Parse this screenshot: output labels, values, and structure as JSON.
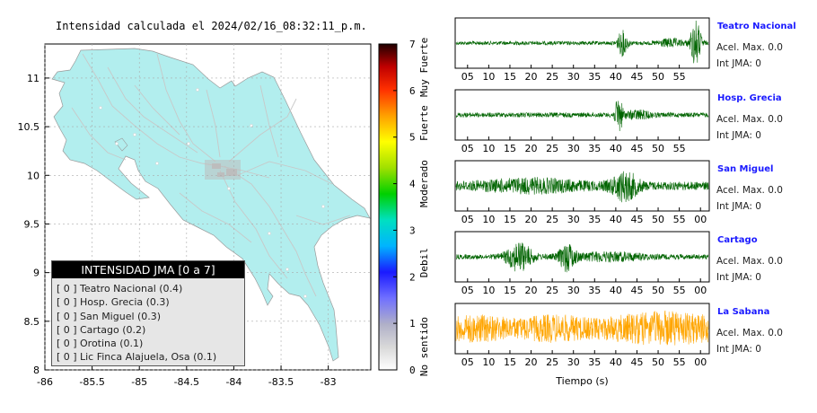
{
  "title": "Intensidad calculada el 2024/02/16_08:32:11_p.m.",
  "map": {
    "xticks": [
      "-86",
      "-85.5",
      "-85",
      "-84.5",
      "-84",
      "-83.5",
      "-83"
    ],
    "yticks": [
      "8",
      "8.5",
      "9",
      "9.5",
      "10",
      "10.5",
      "11"
    ],
    "xlim": [
      -86,
      -82.55
    ],
    "ylim": [
      8,
      11.35
    ],
    "land_color": "#b2eeee",
    "ocean_color": "#ffffff"
  },
  "legend": {
    "title": "INTENSIDAD JMA [0 a 7]",
    "items": [
      {
        "idx": "[ 0 ]",
        "label": "Teatro Nacional (0.4)"
      },
      {
        "idx": "[ 0 ]",
        "label": "Hosp. Grecia (0.3)"
      },
      {
        "idx": "[ 0 ]",
        "label": "San Miguel (0.3)"
      },
      {
        "idx": "[ 0 ]",
        "label": "Cartago (0.2)"
      },
      {
        "idx": "[ 0 ]",
        "label": "Orotina (0.1)"
      },
      {
        "idx": "[ 0 ]",
        "label": "Lic Finca Alajuela, Osa (0.1)"
      }
    ]
  },
  "colorbar": {
    "ticks": [
      "0",
      "1",
      "2",
      "3",
      "4",
      "5",
      "6",
      "7"
    ],
    "range": [
      0,
      7
    ],
    "categories": [
      {
        "label": "No sentido",
        "center": 0.5
      },
      {
        "label": "Debil",
        "center": 2.3
      },
      {
        "label": "Moderado",
        "center": 4.0
      },
      {
        "label": "Fuerte",
        "center": 5.3
      },
      {
        "label": "Muy Fuerte",
        "center": 6.5
      }
    ]
  },
  "traces": {
    "xlabel": "Tiempo (s)",
    "stations": [
      {
        "name": "Teatro Nacional",
        "acel": "Acel. Max. 0.0",
        "jma": "Int JMA: 0",
        "color": "#006400",
        "ticks": [
          "05",
          "10",
          "15",
          "20",
          "25",
          "30",
          "35",
          "40",
          "45",
          "50",
          "55"
        ]
      },
      {
        "name": "Hosp. Grecia",
        "acel": "Acel. Max. 0.0",
        "jma": "Int JMA: 0",
        "color": "#006400",
        "ticks": [
          "05",
          "10",
          "15",
          "20",
          "25",
          "30",
          "35",
          "40",
          "45",
          "50",
          "55"
        ]
      },
      {
        "name": "San Miguel",
        "acel": "Acel. Max. 0.0",
        "jma": "Int JMA: 0",
        "color": "#006400",
        "ticks": [
          "05",
          "10",
          "15",
          "20",
          "25",
          "30",
          "35",
          "40",
          "45",
          "50",
          "55",
          "00"
        ]
      },
      {
        "name": "Cartago",
        "acel": "Acel. Max. 0.0",
        "jma": "Int JMA: 0",
        "color": "#006400",
        "ticks": [
          "05",
          "10",
          "15",
          "20",
          "25",
          "30",
          "35",
          "40",
          "45",
          "50",
          "55",
          "00"
        ]
      },
      {
        "name": "La Sabana",
        "acel": "Acel. Max. 0.0",
        "jma": "Int JMA: 0",
        "color": "#ffa500",
        "ticks": [
          "05",
          "10",
          "15",
          "20",
          "25",
          "30",
          "35",
          "40",
          "45",
          "50",
          "55",
          "00"
        ]
      }
    ]
  }
}
